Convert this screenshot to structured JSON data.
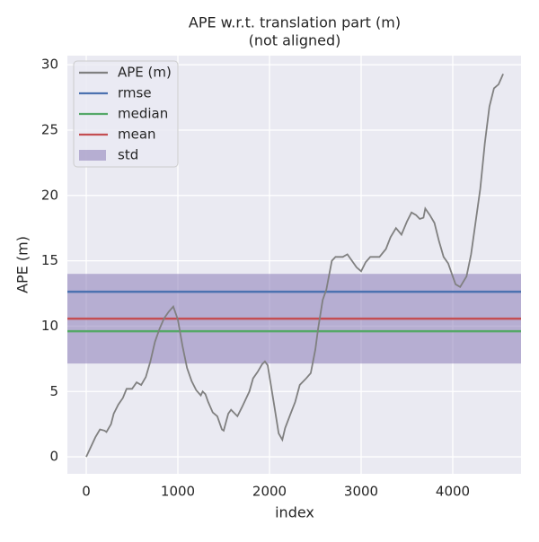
{
  "chart_data": {
    "type": "line",
    "title": "APE w.r.t. translation part (m)",
    "subtitle": "(not aligned)",
    "x_label": "index",
    "y_label": "APE (m)",
    "x": [
      0,
      100,
      150,
      200,
      220,
      270,
      300,
      350,
      400,
      440,
      500,
      550,
      600,
      650,
      700,
      750,
      800,
      850,
      900,
      950,
      1000,
      1050,
      1100,
      1150,
      1200,
      1250,
      1270,
      1300,
      1330,
      1380,
      1430,
      1480,
      1500,
      1550,
      1580,
      1650,
      1700,
      1780,
      1820,
      1870,
      1920,
      1950,
      1980,
      2050,
      2100,
      2140,
      2170,
      2230,
      2280,
      2330,
      2400,
      2450,
      2500,
      2530,
      2580,
      2620,
      2680,
      2720,
      2800,
      2850,
      2900,
      2950,
      3000,
      3050,
      3100,
      3200,
      3270,
      3320,
      3380,
      3440,
      3500,
      3550,
      3600,
      3640,
      3680,
      3700,
      3750,
      3800,
      3850,
      3900,
      3950,
      4000,
      4030,
      4080,
      4150,
      4200,
      4300,
      4350,
      4400,
      4450,
      4500,
      4550
    ],
    "series": [
      {
        "name": "APE (m)",
        "color": "#808080",
        "values": [
          0,
          1.5,
          2.1,
          2.0,
          1.9,
          2.5,
          3.3,
          4.0,
          4.5,
          5.2,
          5.2,
          5.7,
          5.5,
          6.1,
          7.3,
          8.8,
          9.8,
          10.6,
          11.1,
          11.5,
          10.5,
          8.5,
          6.8,
          5.8,
          5.1,
          4.7,
          5.0,
          4.8,
          4.2,
          3.4,
          3.1,
          2.1,
          2.0,
          3.3,
          3.6,
          3.1,
          3.8,
          5.0,
          6.0,
          6.5,
          7.1,
          7.3,
          7.0,
          4.0,
          1.8,
          1.3,
          2.2,
          3.3,
          4.2,
          5.5,
          6.0,
          6.4,
          8.2,
          9.8,
          12.0,
          12.8,
          15.0,
          15.3,
          15.3,
          15.5,
          15.0,
          14.5,
          14.2,
          14.9,
          15.3,
          15.3,
          15.9,
          16.8,
          17.5,
          17.0,
          18.0,
          18.7,
          18.5,
          18.2,
          18.3,
          19.0,
          18.5,
          17.9,
          16.5,
          15.3,
          14.8,
          13.8,
          13.2,
          13.0,
          13.8,
          15.5,
          20.5,
          24.0,
          26.8,
          28.2,
          28.5,
          29.3
        ]
      }
    ],
    "hlines": [
      {
        "name": "rmse",
        "color": "#4c72b0",
        "value": 12.63
      },
      {
        "name": "median",
        "color": "#55a868",
        "value": 9.61
      },
      {
        "name": "mean",
        "color": "#c44e52",
        "value": 10.57
      }
    ],
    "band": {
      "name": "std",
      "color": "#8172b2",
      "value": 3.43
    },
    "xlim": [
      -206,
      4745
    ],
    "ylim": [
      -1.3,
      30.7
    ],
    "xticks": [
      0,
      1000,
      2000,
      3000,
      4000
    ],
    "yticks": [
      0,
      5,
      10,
      15,
      20,
      25,
      30
    ],
    "grid": true,
    "legend": "upper left"
  }
}
